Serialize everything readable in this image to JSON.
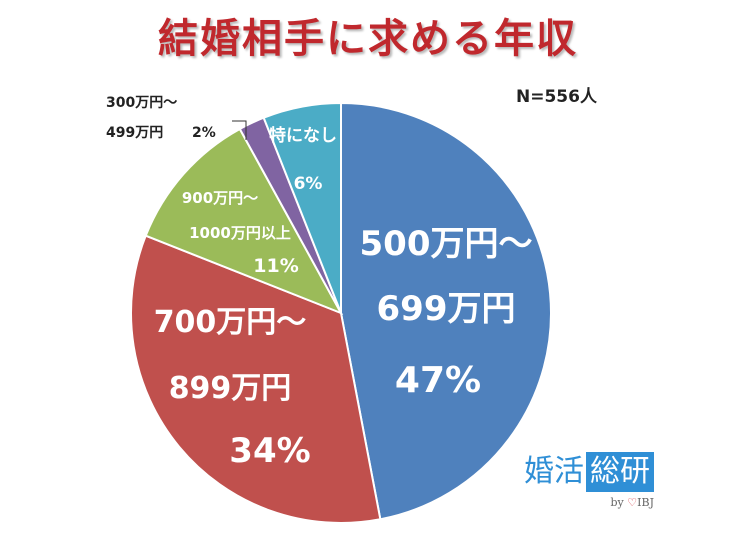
{
  "title": "結婚相手に求める年収",
  "sample": "N=556人",
  "logo": {
    "part1": "婚活",
    "part2": "総研",
    "byline": "by",
    "brand": "IBJ"
  },
  "colors": {
    "blue": "#4f81bd",
    "red": "#c0504d",
    "green": "#9bbb59",
    "purple": "#8064a2",
    "cyan": "#4bacc6",
    "title": "#c0282d"
  },
  "chart_data": {
    "type": "pie",
    "title": "結婚相手に求める年収",
    "slices": [
      {
        "label": [
          "500万円〜",
          "699万円"
        ],
        "percent_text": "47%",
        "value": 47,
        "color": "#4f81bd"
      },
      {
        "label": [
          "700万円〜",
          "899万円"
        ],
        "percent_text": "34%",
        "value": 34,
        "color": "#c0504d"
      },
      {
        "label": [
          "900万円〜",
          "1000万円以上"
        ],
        "percent_text": "11%",
        "value": 11,
        "color": "#9bbb59"
      },
      {
        "label": [
          "300万円〜",
          "499万円"
        ],
        "percent_text": "2%",
        "value": 2,
        "color": "#8064a2"
      },
      {
        "label": [
          "特になし"
        ],
        "percent_text": "6%",
        "value": 6,
        "color": "#4bacc6"
      }
    ]
  }
}
